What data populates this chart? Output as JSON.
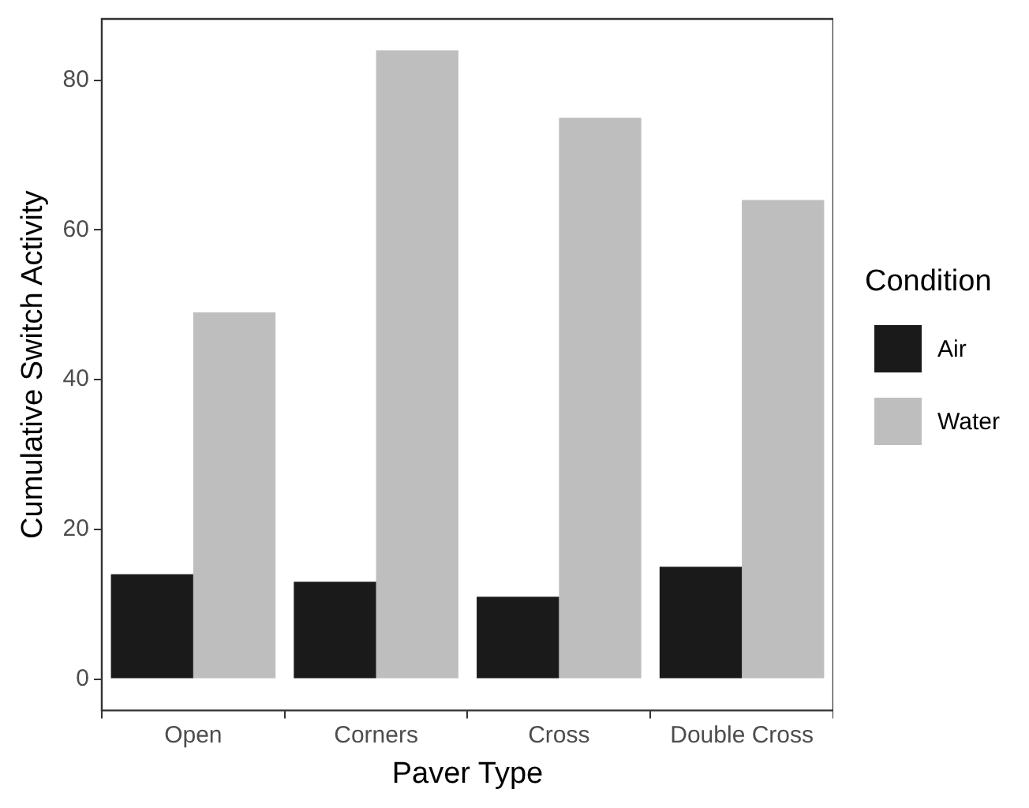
{
  "chart_data": {
    "type": "bar",
    "xlabel": "Paver Type",
    "ylabel": "Cumulative Switch Activity",
    "legend_title": "Condition",
    "categories": [
      "Open",
      "Corners",
      "Cross",
      "Double Cross"
    ],
    "series": [
      {
        "name": "Air",
        "color": "#1a1a1a",
        "values": [
          14,
          13,
          11,
          15
        ]
      },
      {
        "name": "Water",
        "color": "#bebebe",
        "values": [
          49,
          84,
          75,
          64
        ]
      }
    ],
    "ylim": [
      -4.2,
      88.2
    ],
    "yticks": [
      0,
      20,
      40,
      60,
      80
    ],
    "grid": false,
    "legend": "right"
  }
}
